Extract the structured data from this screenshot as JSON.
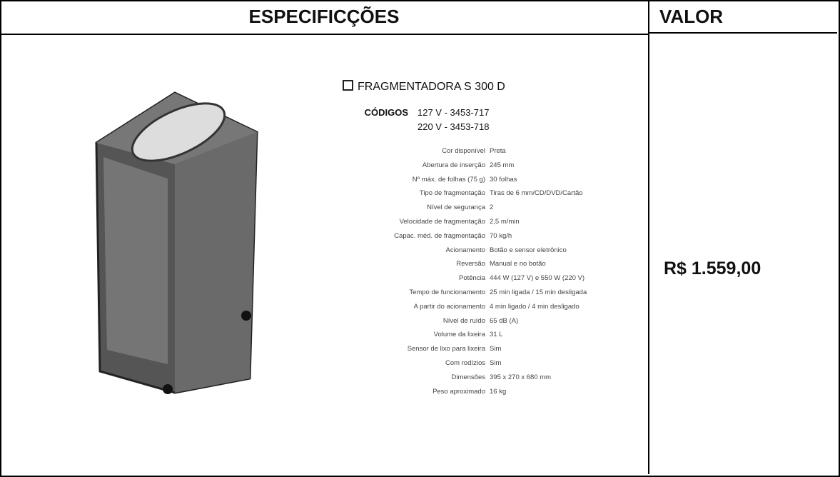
{
  "header": {
    "specs": "ESPECIFICÇÕES",
    "value": "VALOR"
  },
  "product": {
    "name": "FRAGMENTADORA S 300 D",
    "codes_label": "CÓDIGOS",
    "codes": [
      "127 V - 3453-717",
      "220 V - 3453-718"
    ],
    "specs": [
      [
        "Cor disponível",
        "Preta"
      ],
      [
        "Abertura de inserção",
        "245 mm"
      ],
      [
        "Nº máx. de folhas (75 g)",
        "30 folhas"
      ],
      [
        "Tipo de fragmentação",
        "Tiras de 6 mm/CD/DVD/Cartão"
      ],
      [
        "Nível de segurança",
        "2"
      ],
      [
        "Velocidade de fragmentação",
        "2,5 m/min"
      ],
      [
        "Capac. méd. de fragmentação",
        "70 kg/h"
      ],
      [
        "Acionamento",
        "Botão e sensor eletrônico"
      ],
      [
        "Reversão",
        "Manual e no botão"
      ],
      [
        "Potência",
        "444 W (127 V) e 550 W (220 V)"
      ],
      [
        "Tempo de funcionamento",
        "25 min ligada / 15 min desligada"
      ],
      [
        "A partir do acionamento",
        "4 min ligado / 4 min desligado"
      ],
      [
        "Nível de ruído",
        "65 dB (A)"
      ],
      [
        "Volume da lixeira",
        "31 L"
      ],
      [
        "Sensor de lixo para lixeira",
        "Sim"
      ],
      [
        "Com rodízios",
        "Sim"
      ],
      [
        "Dimensões",
        "395 x 270 x 680 mm"
      ],
      [
        "Peso aproximado",
        "16 kg"
      ]
    ]
  },
  "price": "R$ 1.559,00"
}
